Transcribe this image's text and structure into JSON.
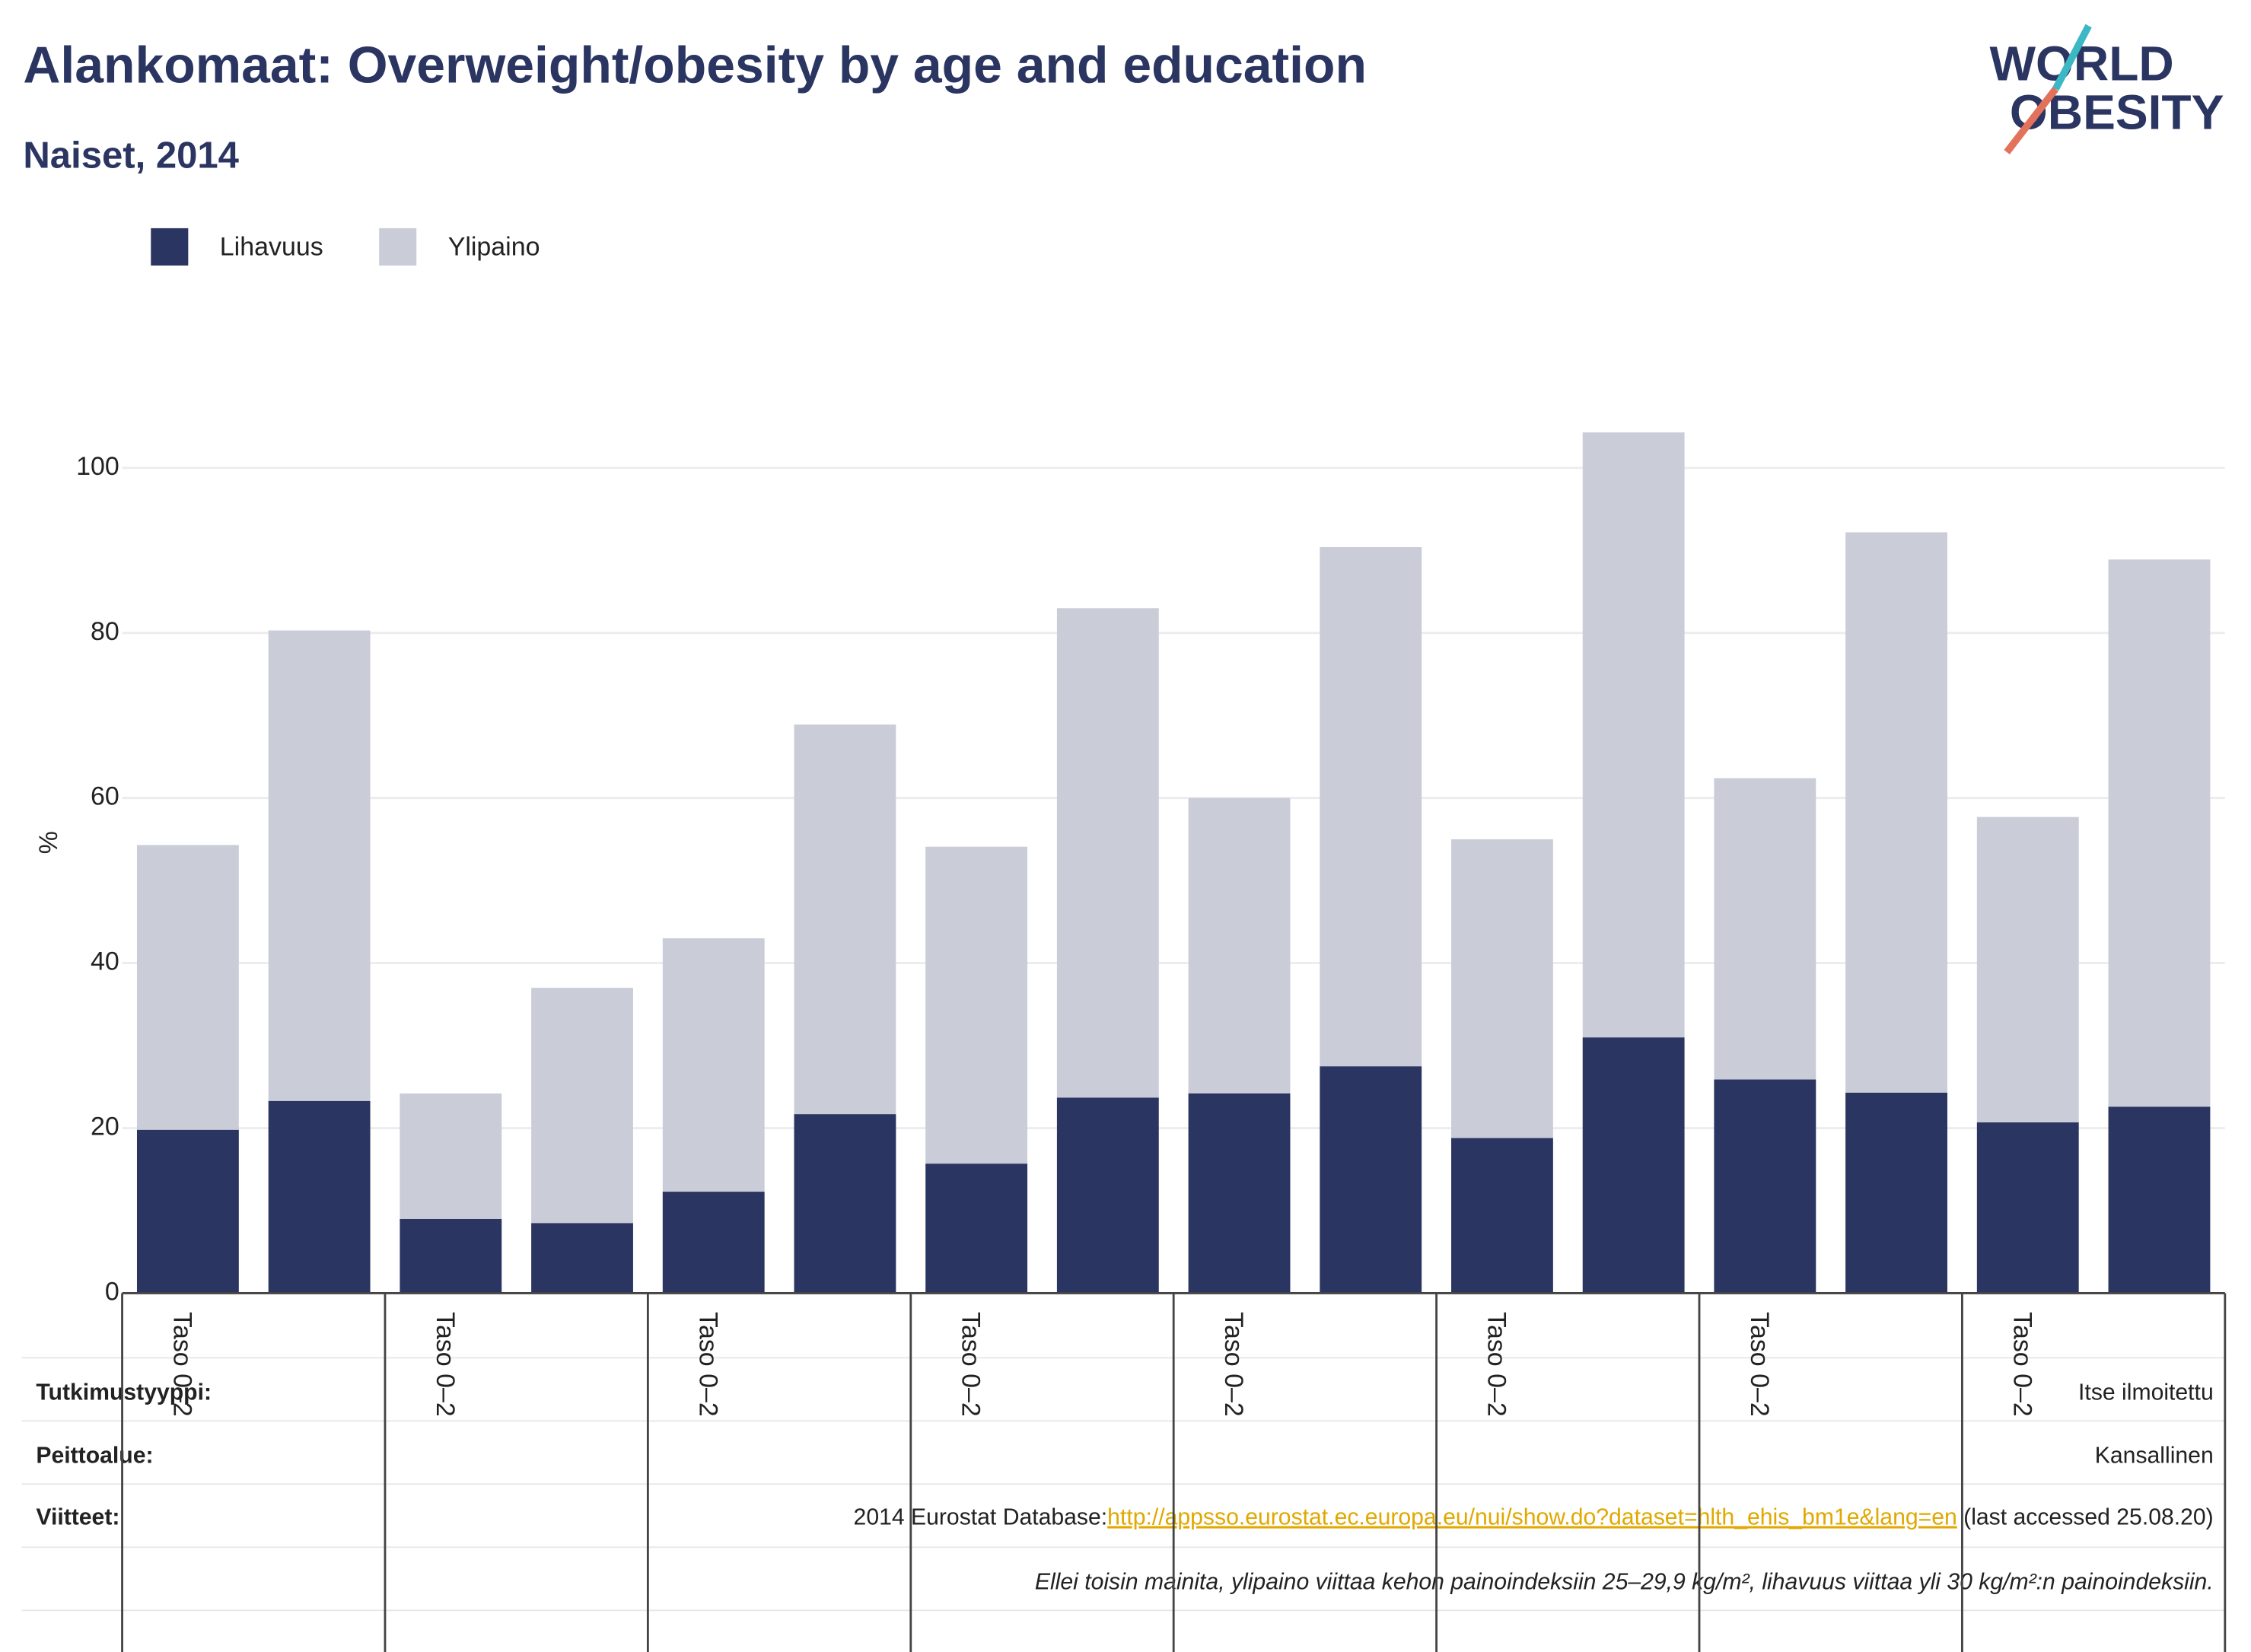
{
  "chart_data": {
    "type": "stacked_bar",
    "title": "Alankomaat: Overweight/obesity by age and education",
    "subtitle": "Naiset, 2014",
    "y_label": "%",
    "categories": [
      "Taso 0–2",
      null,
      "Taso 0–2",
      null,
      "Taso 0–2",
      null,
      "Taso 0–2",
      null,
      "Taso 0–2",
      null,
      "Taso 0–2",
      null,
      "Taso 0–2",
      null,
      "Taso 0–2",
      null
    ],
    "series": [
      {
        "name": "Lihavuus",
        "color": "#2b3561",
        "values": [
          19.8,
          23.3,
          9.0,
          8.5,
          12.3,
          21.7,
          15.7,
          23.7,
          24.2,
          27.5,
          18.8,
          31.0,
          25.9,
          24.3,
          20.7,
          22.6
        ]
      },
      {
        "name": "Ylipaino",
        "color": "#cacdd8",
        "values": [
          34.5,
          57.0,
          15.2,
          28.5,
          30.7,
          47.2,
          38.4,
          59.3,
          35.8,
          62.9,
          36.2,
          73.3,
          36.5,
          67.9,
          37.0,
          66.3
        ]
      }
    ],
    "ylim": [
      0,
      105
    ],
    "yticks": [
      0,
      20,
      40,
      60,
      80,
      100
    ],
    "grid": true,
    "legend": "top-left"
  },
  "logo": {
    "line1": "WORLD",
    "line2": "OBESITY"
  },
  "footer": {
    "rows": [
      {
        "label": "Tutkimustyyppi:",
        "value": "Itse ilmoitettu"
      },
      {
        "label": "Peittoalue:",
        "value": "Kansallinen"
      },
      {
        "label": "Viitteet:",
        "prefix": "2014 Eurostat Database:",
        "link": "http://appsso.eurostat.ec.europa.eu/nui/show.do?dataset=hlth_ehis_bm1e&lang=en",
        "suffix": " (last accessed 25.08.20)"
      }
    ],
    "note": "Ellei toisin mainita, ylipaino viittaa kehon painoindeksiin 25–29,9 kg/m², lihavuus viittaa yli 30 kg/m²:n painoindeksiin."
  }
}
